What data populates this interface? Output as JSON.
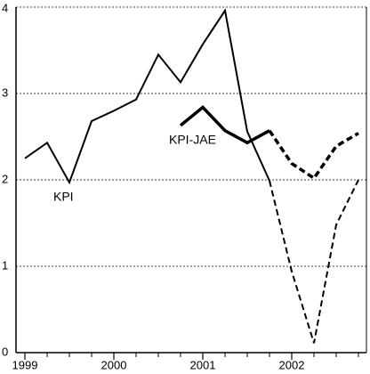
{
  "chart_data": {
    "type": "line",
    "x": [
      1999,
      1999.25,
      1999.5,
      1999.75,
      2000,
      2000.25,
      2000.5,
      2000.75,
      2001,
      2001.25,
      2001.5,
      2001.75,
      2002,
      2002.25,
      2002.5,
      2002.75
    ],
    "series": [
      {
        "name": "KPI",
        "color": "#000000",
        "width": 2,
        "values": [
          2.25,
          2.43,
          1.97,
          2.68,
          2.8,
          2.93,
          3.45,
          3.13,
          3.57,
          3.96,
          2.56,
          1.99,
          0.94,
          0.11,
          1.48,
          2.0
        ]
      },
      {
        "name": "KPI-JAE",
        "color": "#000000",
        "width": 3.5,
        "values": [
          null,
          null,
          null,
          null,
          null,
          null,
          null,
          2.63,
          2.84,
          2.57,
          2.43,
          2.57,
          2.19,
          2.02,
          2.39,
          2.54
        ]
      }
    ],
    "dashed_from": 2001.75,
    "xlim": [
      1998.9,
      2002.84
    ],
    "xticks": [
      1999,
      2000,
      2001,
      2002
    ],
    "xminorticks": [
      1999.25,
      1999.5,
      1999.75,
      2000.25,
      2000.5,
      2000.75,
      2001.25,
      2001.5,
      2001.75,
      2002.25,
      2002.5,
      2002.75
    ],
    "ylim": [
      0,
      4
    ],
    "yticks": [
      0,
      1,
      2,
      3,
      4
    ],
    "grid": true
  }
}
